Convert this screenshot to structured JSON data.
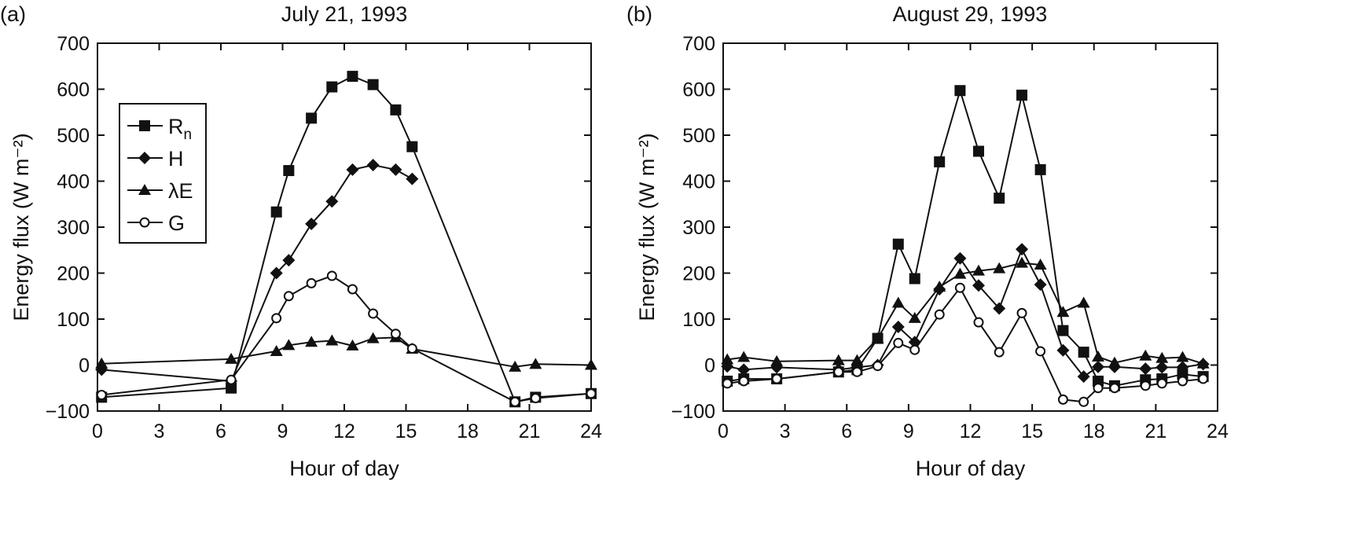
{
  "chart_data": [
    {
      "type": "line",
      "panel_label": "(a)",
      "title": "July 21, 1993",
      "xlabel": "Hour of day",
      "ylabel": "Energy flux (W m⁻²)",
      "xlim": [
        0,
        24
      ],
      "ylim": [
        -100,
        700
      ],
      "xticks": [
        0,
        3,
        6,
        9,
        12,
        15,
        18,
        21,
        24
      ],
      "yticks": [
        -100,
        0,
        100,
        200,
        300,
        400,
        500,
        600,
        700
      ],
      "grid": false,
      "legend": {
        "placement": "upper-left",
        "entries": [
          "Rn",
          "H",
          "λE",
          "G"
        ]
      },
      "series": [
        {
          "name": "Rn",
          "marker": "square-filled",
          "x": [
            0.2,
            6.5,
            8.7,
            9.3,
            10.4,
            11.4,
            12.4,
            13.4,
            14.5,
            15.3,
            20.3,
            21.3,
            24.0
          ],
          "y": [
            -70,
            -50,
            333,
            423,
            537,
            605,
            628,
            610,
            555,
            475,
            -80,
            -70,
            -62
          ]
        },
        {
          "name": "H",
          "marker": "diamond-filled",
          "x": [
            0.2,
            6.5,
            8.7,
            9.3,
            10.4,
            11.4,
            12.4,
            13.4,
            14.5,
            15.3
          ],
          "y": [
            -10,
            -35,
            200,
            228,
            307,
            356,
            425,
            435,
            425,
            405
          ]
        },
        {
          "name": "λE",
          "marker": "triangle-filled",
          "x": [
            0.2,
            6.5,
            8.7,
            9.3,
            10.4,
            11.4,
            12.4,
            13.4,
            14.5,
            15.3,
            20.3,
            21.3,
            24.0
          ],
          "y": [
            3,
            13,
            30,
            43,
            50,
            53,
            42,
            58,
            60,
            35,
            -4,
            2,
            0
          ]
        },
        {
          "name": "G",
          "marker": "circle-open",
          "x": [
            0.2,
            6.5,
            8.7,
            9.3,
            10.4,
            11.4,
            12.4,
            13.4,
            14.5,
            15.3,
            20.3,
            21.3,
            24.0
          ],
          "y": [
            -65,
            -32,
            102,
            150,
            178,
            194,
            165,
            112,
            68,
            36,
            -80,
            -72,
            -62
          ]
        }
      ]
    },
    {
      "type": "line",
      "panel_label": "(b)",
      "title": "August 29, 1993",
      "xlabel": "Hour of day",
      "ylabel": "Energy flux (W m⁻²)",
      "xlim": [
        0,
        24
      ],
      "ylim": [
        -100,
        700
      ],
      "xticks": [
        0,
        3,
        6,
        9,
        12,
        15,
        18,
        21,
        24
      ],
      "yticks": [
        -100,
        0,
        100,
        200,
        300,
        400,
        500,
        600,
        700
      ],
      "grid": false,
      "series": [
        {
          "name": "Rn",
          "marker": "square-filled",
          "x": [
            0.2,
            1.0,
            2.6,
            5.6,
            6.5,
            7.5,
            8.5,
            9.3,
            10.5,
            11.5,
            12.4,
            13.4,
            14.5,
            15.4,
            16.5,
            17.5,
            18.2,
            19.0,
            20.5,
            21.3,
            22.3,
            23.3
          ],
          "y": [
            -35,
            -30,
            -30,
            -15,
            -10,
            58,
            263,
            188,
            442,
            597,
            465,
            363,
            587,
            425,
            75,
            28,
            -35,
            -45,
            -32,
            -30,
            -20,
            -25
          ]
        },
        {
          "name": "H",
          "marker": "diamond-filled",
          "x": [
            0.2,
            1.0,
            2.6,
            5.6,
            6.5,
            7.5,
            8.5,
            9.3,
            10.5,
            11.5,
            12.4,
            13.4,
            14.5,
            15.4,
            16.5,
            17.5,
            18.2,
            19.0,
            20.5,
            21.3,
            22.3,
            23.3
          ],
          "y": [
            -3,
            -10,
            -5,
            -10,
            -5,
            0,
            83,
            50,
            165,
            232,
            173,
            123,
            252,
            175,
            32,
            -25,
            -4,
            -4,
            -8,
            -5,
            -5,
            2
          ]
        },
        {
          "name": "λE",
          "marker": "triangle-filled",
          "x": [
            0.2,
            1.0,
            2.6,
            5.6,
            6.5,
            7.5,
            8.5,
            9.3,
            10.5,
            11.5,
            12.4,
            13.4,
            14.5,
            15.4,
            16.5,
            17.5,
            18.2,
            19.0,
            20.5,
            21.3,
            22.3,
            23.3
          ],
          "y": [
            12,
            17,
            8,
            10,
            10,
            58,
            135,
            102,
            170,
            198,
            205,
            210,
            222,
            218,
            115,
            135,
            18,
            5,
            20,
            15,
            17,
            3
          ]
        },
        {
          "name": "G",
          "marker": "circle-open",
          "x": [
            0.2,
            1.0,
            2.6,
            5.6,
            6.5,
            7.5,
            8.5,
            9.3,
            10.5,
            11.5,
            12.4,
            13.4,
            14.5,
            15.4,
            16.5,
            17.5,
            18.2,
            19.0,
            20.5,
            21.3,
            22.3,
            23.3
          ],
          "y": [
            -40,
            -35,
            -30,
            -15,
            -15,
            -2,
            48,
            33,
            110,
            168,
            93,
            28,
            113,
            30,
            -75,
            -80,
            -50,
            -50,
            -45,
            -40,
            -35,
            -30
          ]
        }
      ]
    }
  ]
}
